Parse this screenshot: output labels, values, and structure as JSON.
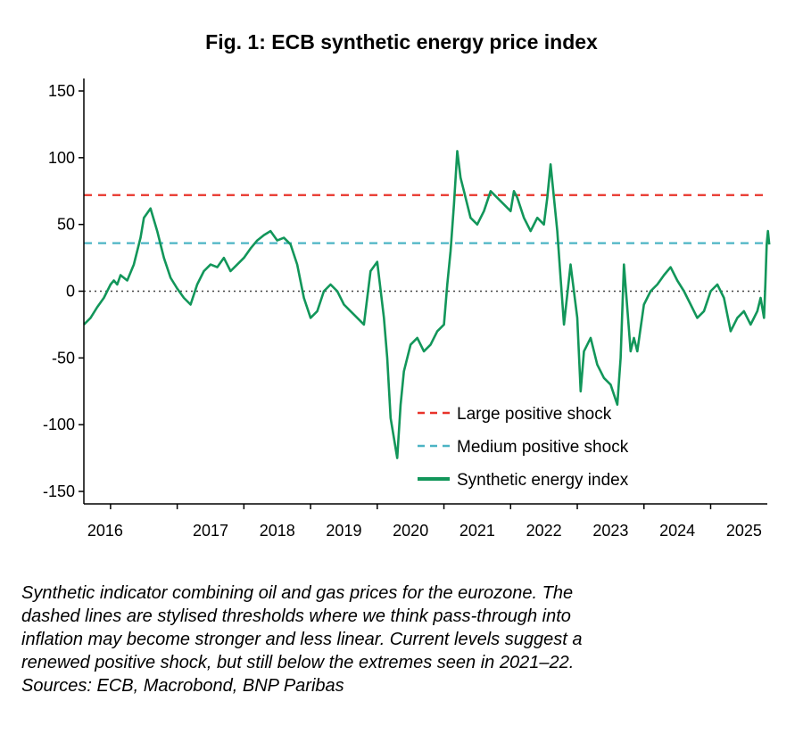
{
  "chart_data": {
    "type": "line",
    "title": "Fig. 1: ECB synthetic energy price index",
    "xlabel": "",
    "ylabel": "",
    "ylim": [
      -150,
      150
    ],
    "xlim": [
      2015.6,
      2025.85
    ],
    "yticks": [
      150,
      100,
      50,
      0,
      -50,
      -100,
      -150
    ],
    "ytick_labels": [
      "150",
      "100",
      "50",
      "0",
      "-50",
      "-100",
      "-150"
    ],
    "xticks": [
      2016,
      2017,
      2018,
      2019,
      2020,
      2021,
      2022,
      2023,
      2024,
      2025
    ],
    "xtick_labels": [
      "2016",
      "2017",
      "2018",
      "2019",
      "2020",
      "2021",
      "2022",
      "2023",
      "2024",
      "2025"
    ],
    "grid": false,
    "legend_position": "bottom-right",
    "reference_lines": [
      {
        "name": "Large positive shock",
        "value": 72,
        "style": "dashed",
        "color": "#e8332a"
      },
      {
        "name": "Medium positive shock",
        "value": 36,
        "style": "dashed",
        "color": "#4bb4c4"
      },
      {
        "name": "zero",
        "value": 0,
        "style": "dotted",
        "color": "#444444"
      }
    ],
    "series": [
      {
        "name": "Synthetic energy index",
        "color": "#12965a",
        "x": [
          2015.6,
          2015.7,
          2015.8,
          2015.9,
          2016.0,
          2016.05,
          2016.1,
          2016.15,
          2016.25,
          2016.35,
          2016.45,
          2016.5,
          2016.6,
          2016.7,
          2016.8,
          2016.9,
          2017.0,
          2017.1,
          2017.2,
          2017.3,
          2017.4,
          2017.5,
          2017.6,
          2017.7,
          2017.8,
          2017.9,
          2018.0,
          2018.1,
          2018.2,
          2018.3,
          2018.4,
          2018.5,
          2018.6,
          2018.7,
          2018.8,
          2018.9,
          2019.0,
          2019.1,
          2019.2,
          2019.3,
          2019.4,
          2019.5,
          2019.6,
          2019.7,
          2019.8,
          2019.9,
          2020.0,
          2020.1,
          2020.15,
          2020.2,
          2020.25,
          2020.3,
          2020.35,
          2020.4,
          2020.5,
          2020.6,
          2020.7,
          2020.8,
          2020.9,
          2021.0,
          2021.05,
          2021.1,
          2021.15,
          2021.2,
          2021.25,
          2021.3,
          2021.4,
          2021.5,
          2021.6,
          2021.7,
          2021.8,
          2021.9,
          2022.0,
          2022.05,
          2022.1,
          2022.2,
          2022.3,
          2022.4,
          2022.5,
          2022.55,
          2022.6,
          2022.7,
          2022.75,
          2022.8,
          2022.9,
          2023.0,
          2023.05,
          2023.1,
          2023.2,
          2023.3,
          2023.4,
          2023.5,
          2023.6,
          2023.65,
          2023.7,
          2023.8,
          2023.85,
          2023.9,
          2024.0,
          2024.1,
          2024.2,
          2024.3,
          2024.4,
          2024.5,
          2024.6,
          2024.7,
          2024.8,
          2024.9,
          2025.0,
          2025.1,
          2025.2,
          2025.3,
          2025.4,
          2025.5,
          2025.6,
          2025.65,
          2025.7,
          2025.75,
          2025.8
        ],
        "values": [
          -25,
          -20,
          -12,
          -5,
          5,
          8,
          5,
          12,
          8,
          20,
          40,
          55,
          62,
          45,
          25,
          10,
          2,
          -5,
          -10,
          5,
          15,
          20,
          18,
          25,
          15,
          20,
          25,
          32,
          38,
          42,
          45,
          38,
          40,
          35,
          20,
          -5,
          -20,
          -15,
          0,
          5,
          0,
          -10,
          -15,
          -20,
          -25,
          15,
          22,
          -20,
          -50,
          -95,
          -110,
          -125,
          -85,
          -60,
          -40,
          -35,
          -45,
          -40,
          -30,
          -25,
          5,
          30,
          65,
          105,
          85,
          75,
          55,
          50,
          60,
          75,
          70,
          65,
          60,
          75,
          70,
          55,
          45,
          55,
          50,
          70,
          95,
          45,
          10,
          -25,
          20,
          -20,
          -75,
          -45,
          -35,
          -55,
          -65,
          -70,
          -85,
          -50,
          20,
          -45,
          -35,
          -45,
          -10,
          0,
          5,
          12,
          18,
          8,
          0,
          -10,
          -20,
          -15,
          0,
          5,
          -5,
          -30,
          -20,
          -15,
          -25,
          -20,
          -15,
          -5,
          -20
        ],
        "x_tail": [
          2025.8,
          2025.82,
          2025.84,
          2025.86,
          2025.88
        ],
        "values_tail": [
          -20,
          5,
          35,
          45,
          35
        ]
      }
    ],
    "legend": [
      {
        "label": "Large positive shock",
        "style": "dashed",
        "color": "#e8332a"
      },
      {
        "label": "Medium positive shock",
        "style": "dashed",
        "color": "#4bb4c4"
      },
      {
        "label": "Synthetic energy index",
        "style": "solid",
        "color": "#12965a"
      }
    ]
  },
  "caption": [
    "Synthetic indicator combining oil and gas prices for the eurozone. The",
    "dashed lines are stylised thresholds where we think pass-through into",
    "inflation may become stronger and less linear. Current levels suggest a",
    "renewed positive shock, but still below the extremes seen in 2021–22.",
    "Sources: ECB, Macrobond, BNP Paribas"
  ]
}
